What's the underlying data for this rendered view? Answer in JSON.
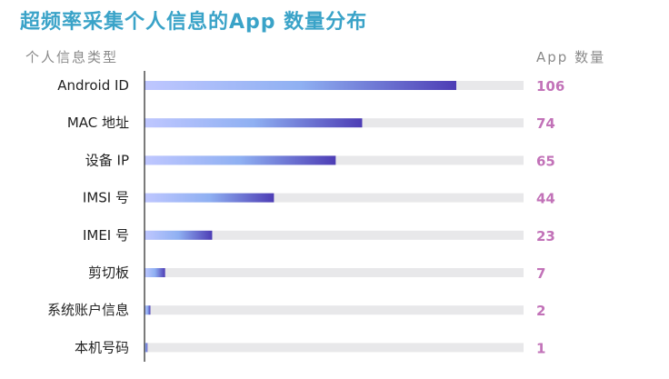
{
  "title": "超频率采集个人信息的App 数量分布",
  "left_header": "个人信息类型",
  "right_header": "App 数量",
  "colors": {
    "title": "#3aa3c8",
    "value_label": "#c272b8",
    "track": "#e8e8ea",
    "bar_start": "#bfc7ff",
    "bar_mid": "#8fb0f2",
    "bar_end": "#4d3db5"
  },
  "chart_data": {
    "type": "bar",
    "orientation": "horizontal",
    "categories": [
      "Android ID",
      "MAC 地址",
      "设备 IP",
      "IMSI 号",
      "IMEI 号",
      "剪切板",
      "系统账户信息",
      "本机号码"
    ],
    "values": [
      106,
      74,
      65,
      44,
      23,
      7,
      2,
      1
    ],
    "xlim": [
      0,
      106
    ],
    "grid": false,
    "legend": "none"
  }
}
